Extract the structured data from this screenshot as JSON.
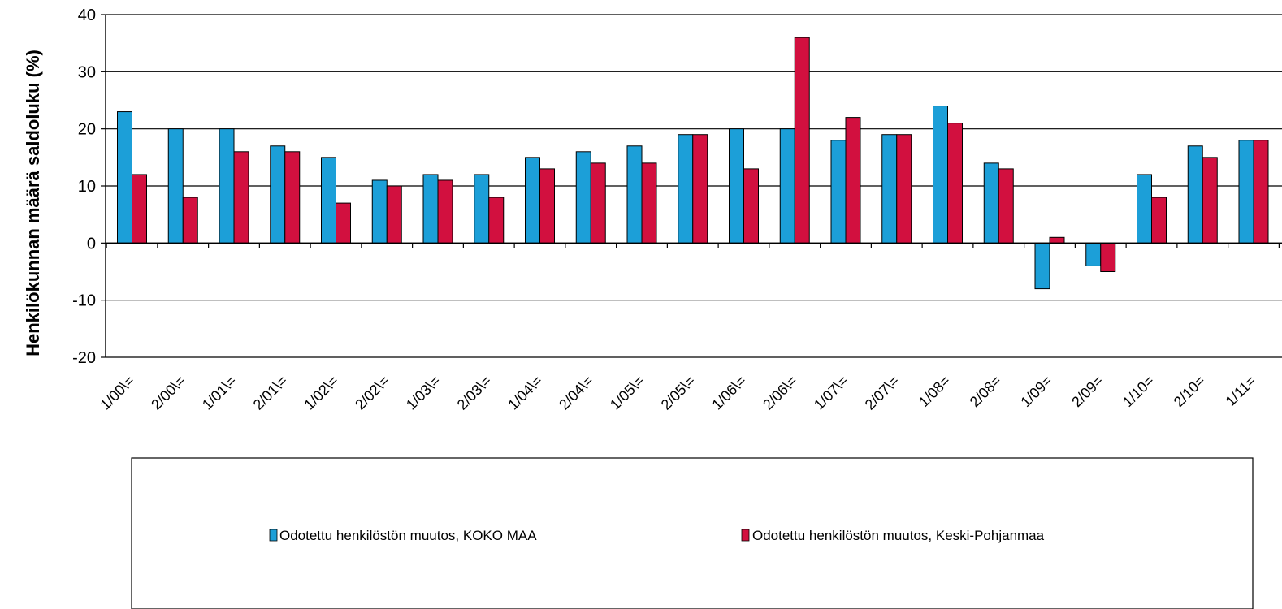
{
  "chart_data": {
    "type": "bar",
    "ylabel": "Henkilökunnan määrä saldoluku (%)",
    "xlabel": "",
    "ylim": [
      -20,
      40
    ],
    "yticks": [
      40,
      30,
      20,
      10,
      0,
      -10,
      -20
    ],
    "grid": true,
    "legend_position": "bottom",
    "categories": [
      "1/00\\=",
      "2/00\\=",
      "1/01\\=",
      "2/01\\=",
      "1/02\\=",
      "2/02\\=",
      "1/03\\=",
      "2/03\\=",
      "1/04\\=",
      "2/04\\=",
      "1/05\\=",
      "2/05\\=",
      "1/06\\=",
      "2/06\\=",
      "1/07\\=",
      "2/07\\=",
      "1/08=",
      "2/08=",
      "1/09=",
      "2/09=",
      "1/10=",
      "2/10=",
      "1/11="
    ],
    "series": [
      {
        "name": "Odotettu henkilöstön muutos, KOKO MAA",
        "color": "#1C9FD8",
        "values": [
          23,
          20,
          20,
          17,
          15,
          11,
          12,
          12,
          15,
          16,
          17,
          19,
          20,
          20,
          18,
          19,
          24,
          14,
          -8,
          -4,
          12,
          17,
          18
        ]
      },
      {
        "name": "Odotettu henkilöstön muutos, Keski-Pohjanmaa",
        "color": "#D2103F",
        "values": [
          12,
          8,
          16,
          16,
          7,
          10,
          11,
          8,
          13,
          14,
          14,
          19,
          13,
          36,
          22,
          19,
          21,
          13,
          1,
          -5,
          8,
          15,
          18
        ]
      }
    ]
  }
}
